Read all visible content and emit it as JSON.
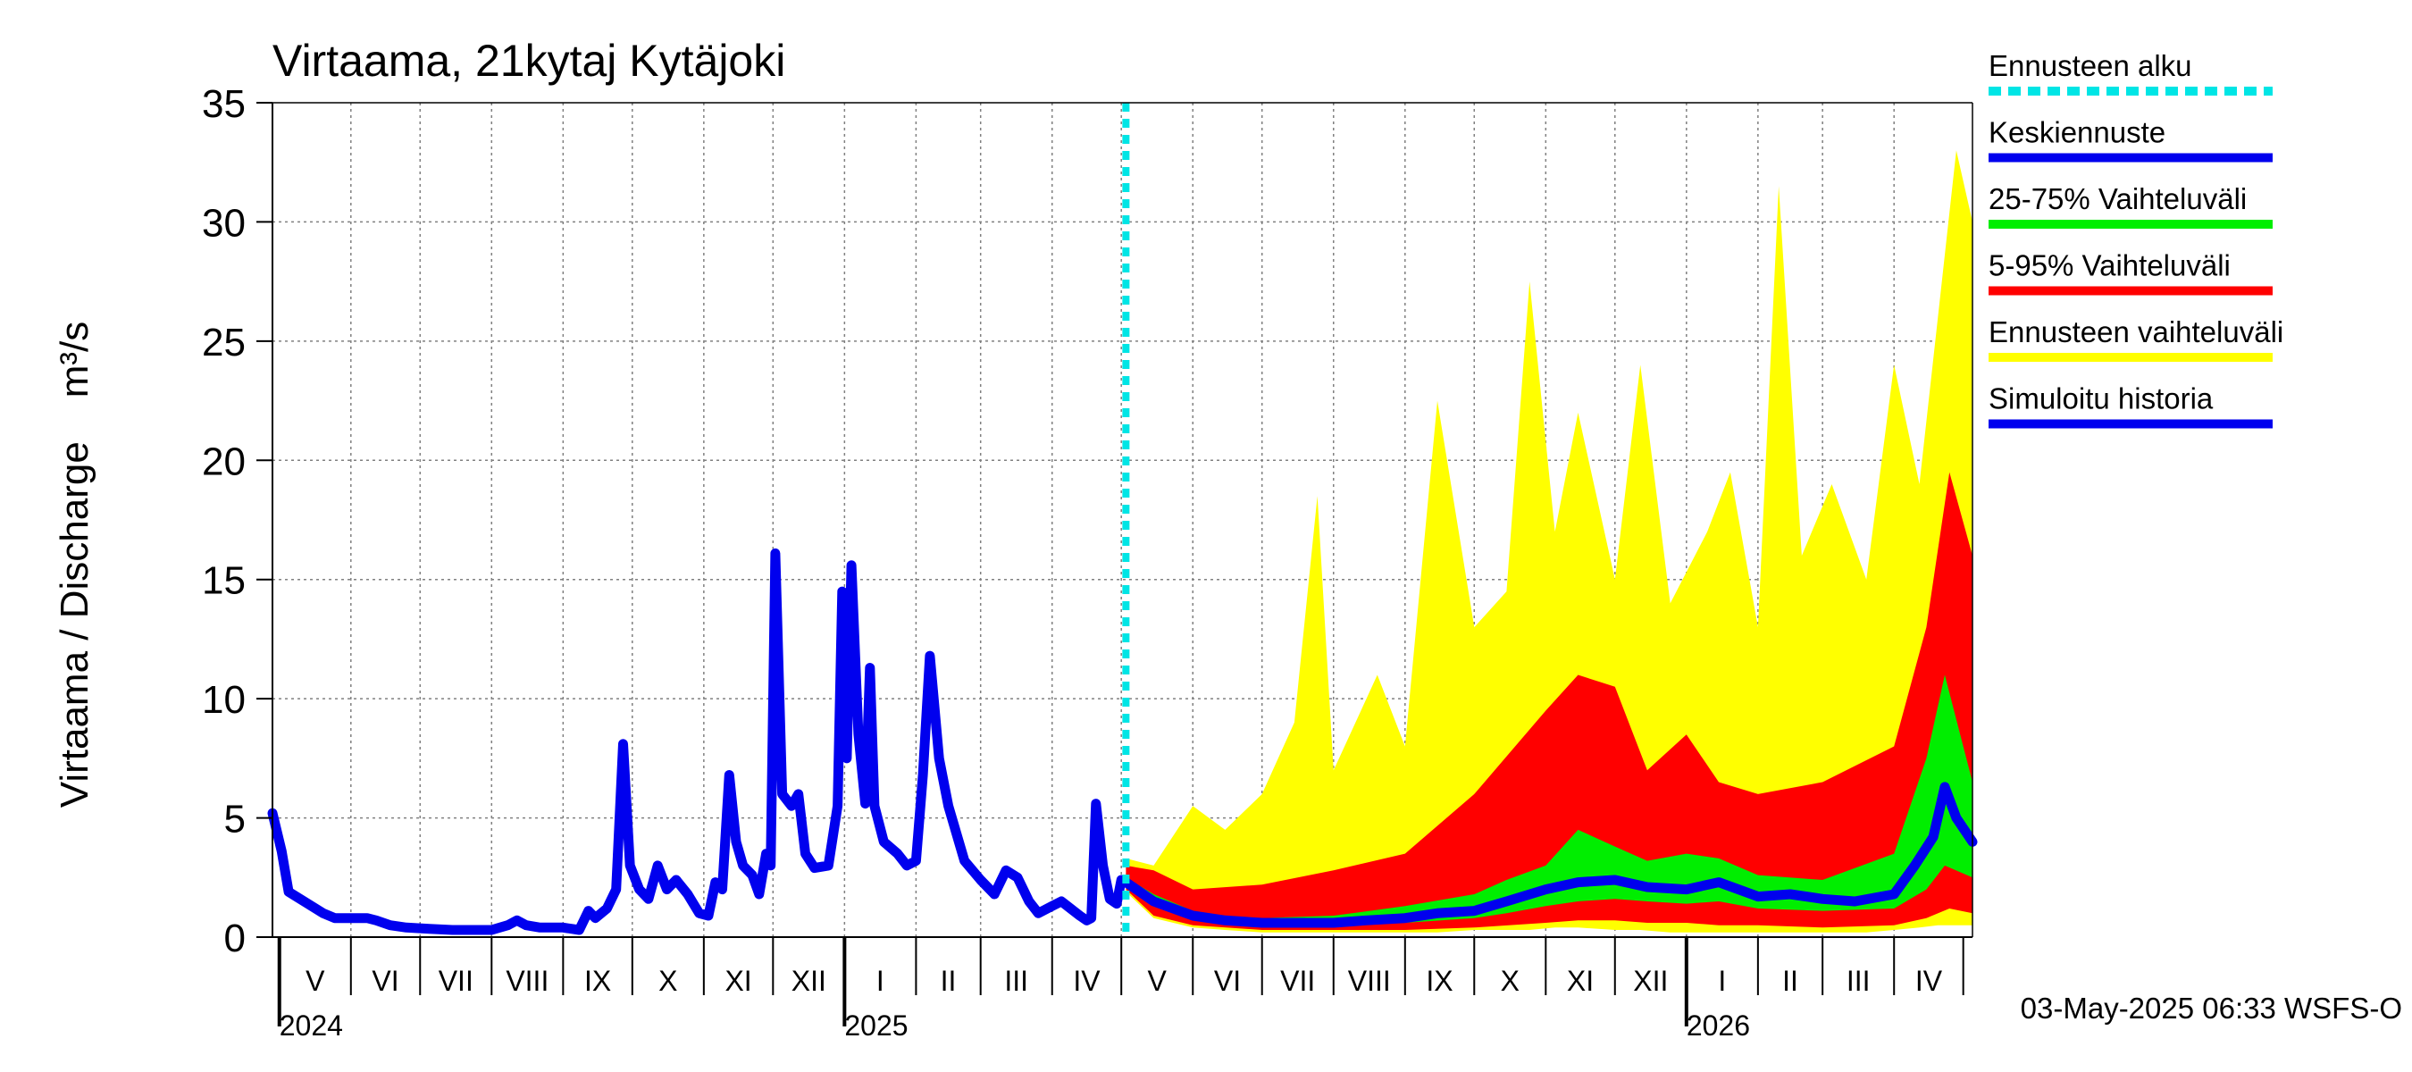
{
  "chart_data": {
    "type": "area",
    "title": "Virtaama, 21kytaj Kytäjoki",
    "ylabel": "Virtaama / Discharge    m³/s",
    "ylim": [
      0,
      35
    ],
    "yticks": [
      "0",
      "5",
      "10",
      "15",
      "20",
      "25",
      "30",
      "35"
    ],
    "grid": true,
    "legend_position": "right",
    "x_start": "2024-04-28",
    "x_end": "2026-05-05",
    "forecast_start": "2025-05-03",
    "months": [
      {
        "label": "V",
        "start": "2024-05-01",
        "end": "2024-06-01"
      },
      {
        "label": "VI",
        "start": "2024-06-01",
        "end": "2024-07-01"
      },
      {
        "label": "VII",
        "start": "2024-07-01",
        "end": "2024-08-01"
      },
      {
        "label": "VIII",
        "start": "2024-08-01",
        "end": "2024-09-01"
      },
      {
        "label": "IX",
        "start": "2024-09-01",
        "end": "2024-10-01"
      },
      {
        "label": "X",
        "start": "2024-10-01",
        "end": "2024-11-01"
      },
      {
        "label": "XI",
        "start": "2024-11-01",
        "end": "2024-12-01"
      },
      {
        "label": "XII",
        "start": "2024-12-01",
        "end": "2025-01-01"
      },
      {
        "label": "I",
        "start": "2025-01-01",
        "end": "2025-02-01"
      },
      {
        "label": "II",
        "start": "2025-02-01",
        "end": "2025-03-01"
      },
      {
        "label": "III",
        "start": "2025-03-01",
        "end": "2025-04-01"
      },
      {
        "label": "IV",
        "start": "2025-04-01",
        "end": "2025-05-01"
      },
      {
        "label": "V",
        "start": "2025-05-01",
        "end": "2025-06-01"
      },
      {
        "label": "VI",
        "start": "2025-06-01",
        "end": "2025-07-01"
      },
      {
        "label": "VII",
        "start": "2025-07-01",
        "end": "2025-08-01"
      },
      {
        "label": "VIII",
        "start": "2025-08-01",
        "end": "2025-09-01"
      },
      {
        "label": "IX",
        "start": "2025-09-01",
        "end": "2025-10-01"
      },
      {
        "label": "X",
        "start": "2025-10-01",
        "end": "2025-11-01"
      },
      {
        "label": "XI",
        "start": "2025-11-01",
        "end": "2025-12-01"
      },
      {
        "label": "XII",
        "start": "2025-12-01",
        "end": "2026-01-01"
      },
      {
        "label": "I",
        "start": "2026-01-01",
        "end": "2026-02-01"
      },
      {
        "label": "II",
        "start": "2026-02-01",
        "end": "2026-03-01"
      },
      {
        "label": "III",
        "start": "2026-03-01",
        "end": "2026-04-01"
      },
      {
        "label": "IV",
        "start": "2026-04-01",
        "end": "2026-05-01"
      }
    ],
    "years": [
      {
        "label": "2024",
        "date": "2024-05-01"
      },
      {
        "label": "2025",
        "date": "2025-01-01"
      },
      {
        "label": "2026",
        "date": "2026-01-01"
      }
    ],
    "colors": {
      "forecast_start": "#00e5e5",
      "mean": "#0000ee",
      "band_25_75": "#00ee00",
      "band_5_95": "#ff0000",
      "band_total": "#ffff00",
      "history": "#0000ee",
      "grid": "#808080"
    },
    "legend": [
      {
        "label": "Ennusteen alku",
        "key": "forecast_start",
        "style": "dashed"
      },
      {
        "label": "Keskiennuste",
        "key": "mean",
        "style": "solid"
      },
      {
        "label": "25-75% Vaihteluväli",
        "key": "band_25_75",
        "style": "solid"
      },
      {
        "label": "5-95% Vaihteluväli",
        "key": "band_5_95",
        "style": "solid"
      },
      {
        "label": "Ennusteen vaihteluväli",
        "key": "band_total",
        "style": "solid"
      },
      {
        "label": "Simuloitu historia",
        "key": "history",
        "style": "solid"
      }
    ],
    "series": [
      {
        "name": "Simuloitu historia",
        "kind": "line",
        "points": [
          [
            "2024-04-28",
            5.2
          ],
          [
            "2024-05-02",
            3.6
          ],
          [
            "2024-05-05",
            1.9
          ],
          [
            "2024-05-10",
            1.6
          ],
          [
            "2024-05-15",
            1.3
          ],
          [
            "2024-05-20",
            1.0
          ],
          [
            "2024-05-25",
            0.8
          ],
          [
            "2024-06-01",
            0.8
          ],
          [
            "2024-06-08",
            0.8
          ],
          [
            "2024-06-12",
            0.7
          ],
          [
            "2024-06-18",
            0.5
          ],
          [
            "2024-06-25",
            0.4
          ],
          [
            "2024-07-05",
            0.35
          ],
          [
            "2024-07-15",
            0.3
          ],
          [
            "2024-07-25",
            0.3
          ],
          [
            "2024-08-01",
            0.3
          ],
          [
            "2024-08-08",
            0.5
          ],
          [
            "2024-08-12",
            0.7
          ],
          [
            "2024-08-16",
            0.5
          ],
          [
            "2024-08-22",
            0.4
          ],
          [
            "2024-09-01",
            0.4
          ],
          [
            "2024-09-08",
            0.3
          ],
          [
            "2024-09-12",
            1.1
          ],
          [
            "2024-09-15",
            0.8
          ],
          [
            "2024-09-20",
            1.2
          ],
          [
            "2024-09-24",
            2.0
          ],
          [
            "2024-09-27",
            8.1
          ],
          [
            "2024-09-30",
            3.0
          ],
          [
            "2024-10-04",
            2.0
          ],
          [
            "2024-10-08",
            1.6
          ],
          [
            "2024-10-12",
            3.0
          ],
          [
            "2024-10-16",
            2.0
          ],
          [
            "2024-10-20",
            2.4
          ],
          [
            "2024-10-25",
            1.8
          ],
          [
            "2024-10-30",
            1.0
          ],
          [
            "2024-11-03",
            0.9
          ],
          [
            "2024-11-06",
            2.3
          ],
          [
            "2024-11-09",
            2.0
          ],
          [
            "2024-11-12",
            6.8
          ],
          [
            "2024-11-15",
            4.0
          ],
          [
            "2024-11-18",
            3.0
          ],
          [
            "2024-11-22",
            2.6
          ],
          [
            "2024-11-25",
            1.8
          ],
          [
            "2024-11-28",
            3.5
          ],
          [
            "2024-11-30",
            3.0
          ],
          [
            "2024-12-02",
            16.1
          ],
          [
            "2024-12-05",
            6.0
          ],
          [
            "2024-12-09",
            5.5
          ],
          [
            "2024-12-12",
            6.0
          ],
          [
            "2024-12-15",
            3.5
          ],
          [
            "2024-12-19",
            2.9
          ],
          [
            "2024-12-25",
            3.0
          ],
          [
            "2024-12-29",
            5.5
          ],
          [
            "2024-12-31",
            14.5
          ],
          [
            "2025-01-02",
            7.5
          ],
          [
            "2025-01-04",
            15.6
          ],
          [
            "2025-01-07",
            8.5
          ],
          [
            "2025-01-10",
            5.6
          ],
          [
            "2025-01-12",
            11.3
          ],
          [
            "2025-01-14",
            5.5
          ],
          [
            "2025-01-18",
            4.0
          ],
          [
            "2025-01-24",
            3.5
          ],
          [
            "2025-01-28",
            3.0
          ],
          [
            "2025-02-01",
            3.2
          ],
          [
            "2025-02-04",
            6.8
          ],
          [
            "2025-02-07",
            11.8
          ],
          [
            "2025-02-11",
            7.5
          ],
          [
            "2025-02-15",
            5.5
          ],
          [
            "2025-02-22",
            3.2
          ],
          [
            "2025-03-01",
            2.4
          ],
          [
            "2025-03-07",
            1.8
          ],
          [
            "2025-03-12",
            2.8
          ],
          [
            "2025-03-17",
            2.5
          ],
          [
            "2025-03-22",
            1.5
          ],
          [
            "2025-03-26",
            1.0
          ],
          [
            "2025-04-01",
            1.3
          ],
          [
            "2025-04-05",
            1.5
          ],
          [
            "2025-04-09",
            1.2
          ],
          [
            "2025-04-13",
            0.9
          ],
          [
            "2025-04-16",
            0.7
          ],
          [
            "2025-04-18",
            0.8
          ],
          [
            "2025-04-20",
            5.6
          ],
          [
            "2025-04-23",
            3.0
          ],
          [
            "2025-04-26",
            1.6
          ],
          [
            "2025-04-29",
            1.4
          ],
          [
            "2025-05-01",
            2.4
          ],
          [
            "2025-05-03",
            2.3
          ]
        ]
      },
      {
        "name": "Keskiennuste",
        "kind": "line",
        "points": [
          [
            "2025-05-03",
            2.3
          ],
          [
            "2025-05-15",
            1.5
          ],
          [
            "2025-06-01",
            0.9
          ],
          [
            "2025-06-15",
            0.7
          ],
          [
            "2025-07-01",
            0.6
          ],
          [
            "2025-07-15",
            0.6
          ],
          [
            "2025-08-01",
            0.6
          ],
          [
            "2025-08-15",
            0.7
          ],
          [
            "2025-09-01",
            0.8
          ],
          [
            "2025-09-15",
            1.0
          ],
          [
            "2025-10-01",
            1.1
          ],
          [
            "2025-10-15",
            1.5
          ],
          [
            "2025-11-01",
            2.0
          ],
          [
            "2025-11-15",
            2.3
          ],
          [
            "2025-12-01",
            2.4
          ],
          [
            "2025-12-15",
            2.1
          ],
          [
            "2026-01-01",
            2.0
          ],
          [
            "2026-01-15",
            2.3
          ],
          [
            "2026-02-01",
            1.7
          ],
          [
            "2026-02-15",
            1.8
          ],
          [
            "2026-03-01",
            1.6
          ],
          [
            "2026-03-15",
            1.5
          ],
          [
            "2026-04-01",
            1.8
          ],
          [
            "2026-04-10",
            3.0
          ],
          [
            "2026-04-18",
            4.2
          ],
          [
            "2026-04-23",
            6.3
          ],
          [
            "2026-04-28",
            5.0
          ],
          [
            "2026-05-05",
            4.0
          ]
        ]
      },
      {
        "name": "25-75% Vaihteluväli",
        "kind": "band",
        "points": [
          [
            "2025-05-03",
            2.2,
            2.5
          ],
          [
            "2025-05-15",
            1.3,
            1.8
          ],
          [
            "2025-06-01",
            0.8,
            1.1
          ],
          [
            "2025-06-15",
            0.6,
            0.9
          ],
          [
            "2025-07-01",
            0.5,
            0.8
          ],
          [
            "2025-08-01",
            0.5,
            0.9
          ],
          [
            "2025-09-01",
            0.6,
            1.3
          ],
          [
            "2025-10-01",
            0.8,
            1.8
          ],
          [
            "2025-10-15",
            1.0,
            2.4
          ],
          [
            "2025-11-01",
            1.3,
            3.0
          ],
          [
            "2025-11-15",
            1.5,
            4.5
          ],
          [
            "2025-12-01",
            1.6,
            3.8
          ],
          [
            "2025-12-15",
            1.5,
            3.2
          ],
          [
            "2026-01-01",
            1.4,
            3.5
          ],
          [
            "2026-01-15",
            1.5,
            3.3
          ],
          [
            "2026-02-01",
            1.2,
            2.6
          ],
          [
            "2026-03-01",
            1.1,
            2.4
          ],
          [
            "2026-04-01",
            1.2,
            3.5
          ],
          [
            "2026-04-15",
            2.0,
            7.5
          ],
          [
            "2026-04-23",
            3.0,
            11.0
          ],
          [
            "2026-05-05",
            2.5,
            6.5
          ]
        ]
      },
      {
        "name": "5-95% Vaihteluväli",
        "kind": "band",
        "points": [
          [
            "2025-05-03",
            2.0,
            3.0
          ],
          [
            "2025-05-15",
            0.9,
            2.8
          ],
          [
            "2025-06-01",
            0.5,
            2.0
          ],
          [
            "2025-07-01",
            0.3,
            2.2
          ],
          [
            "2025-08-01",
            0.3,
            2.8
          ],
          [
            "2025-09-01",
            0.3,
            3.5
          ],
          [
            "2025-10-01",
            0.4,
            6.0
          ],
          [
            "2025-11-01",
            0.6,
            9.5
          ],
          [
            "2025-11-15",
            0.7,
            11.0
          ],
          [
            "2025-12-01",
            0.7,
            10.5
          ],
          [
            "2025-12-15",
            0.6,
            7.0
          ],
          [
            "2026-01-01",
            0.6,
            8.5
          ],
          [
            "2026-01-15",
            0.5,
            6.5
          ],
          [
            "2026-02-01",
            0.5,
            6.0
          ],
          [
            "2026-03-01",
            0.4,
            6.5
          ],
          [
            "2026-04-01",
            0.5,
            8.0
          ],
          [
            "2026-04-15",
            0.8,
            13.0
          ],
          [
            "2026-04-25",
            1.2,
            19.5
          ],
          [
            "2026-05-05",
            1.0,
            16.0
          ]
        ]
      },
      {
        "name": "Ennusteen vaihteluväli",
        "kind": "band",
        "points": [
          [
            "2025-05-03",
            1.9,
            3.3
          ],
          [
            "2025-05-15",
            0.8,
            3.0
          ],
          [
            "2025-06-01",
            0.4,
            5.5
          ],
          [
            "2025-06-15",
            0.3,
            4.5
          ],
          [
            "2025-07-01",
            0.2,
            6.0
          ],
          [
            "2025-07-15",
            0.2,
            9.0
          ],
          [
            "2025-07-25",
            0.2,
            18.5
          ],
          [
            "2025-08-01",
            0.2,
            7.0
          ],
          [
            "2025-08-20",
            0.2,
            11.0
          ],
          [
            "2025-09-01",
            0.2,
            8.0
          ],
          [
            "2025-09-15",
            0.2,
            22.5
          ],
          [
            "2025-10-01",
            0.3,
            13.0
          ],
          [
            "2025-10-15",
            0.3,
            14.5
          ],
          [
            "2025-10-25",
            0.3,
            27.5
          ],
          [
            "2025-11-05",
            0.4,
            17.0
          ],
          [
            "2025-11-15",
            0.4,
            22.0
          ],
          [
            "2025-12-01",
            0.3,
            15.0
          ],
          [
            "2025-12-12",
            0.3,
            24.0
          ],
          [
            "2025-12-25",
            0.2,
            14.0
          ],
          [
            "2026-01-10",
            0.2,
            17.0
          ],
          [
            "2026-01-20",
            0.2,
            19.5
          ],
          [
            "2026-02-01",
            0.2,
            13.0
          ],
          [
            "2026-02-10",
            0.2,
            31.5
          ],
          [
            "2026-02-20",
            0.2,
            16.0
          ],
          [
            "2026-03-05",
            0.2,
            19.0
          ],
          [
            "2026-03-20",
            0.2,
            15.0
          ],
          [
            "2026-04-01",
            0.3,
            24.0
          ],
          [
            "2026-04-12",
            0.4,
            19.0
          ],
          [
            "2026-04-20",
            0.5,
            26.0
          ],
          [
            "2026-04-28",
            0.5,
            33.0
          ],
          [
            "2026-05-05",
            0.5,
            30.0
          ]
        ]
      }
    ],
    "footer": "03-May-2025 06:33 WSFS-O"
  }
}
